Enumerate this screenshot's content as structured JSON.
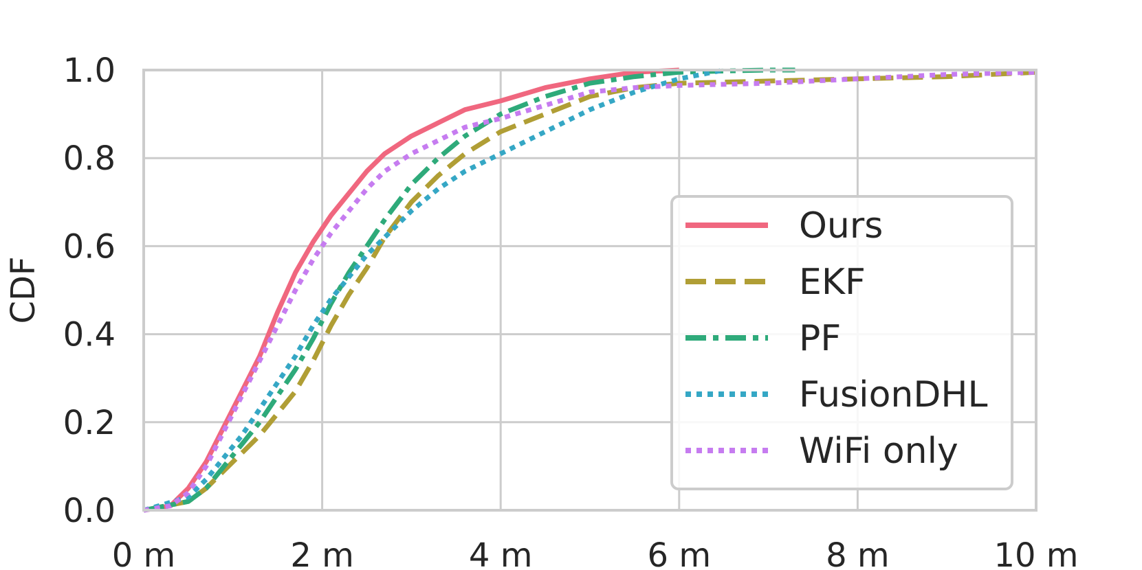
{
  "chart_data": {
    "type": "line",
    "title": "",
    "xlabel": "",
    "ylabel": "CDF",
    "xlim": [
      0,
      10
    ],
    "ylim": [
      0,
      1
    ],
    "x_ticks": [
      0,
      2,
      4,
      6,
      8,
      10
    ],
    "x_tick_labels": [
      "0 m",
      "2 m",
      "4 m",
      "6 m",
      "8 m",
      "10 m"
    ],
    "y_ticks": [
      0,
      0.2,
      0.4,
      0.6,
      0.8,
      1.0
    ],
    "y_tick_labels": [
      "0.0",
      "0.2",
      "0.4",
      "0.6",
      "0.8",
      "1.0"
    ],
    "grid": true,
    "legend_position": "center-right",
    "series": [
      {
        "name": "Ours",
        "color": "#f0677f",
        "dash": "solid",
        "x": [
          0,
          0.3,
          0.5,
          0.7,
          0.9,
          1.1,
          1.3,
          1.5,
          1.7,
          1.9,
          2.1,
          2.3,
          2.5,
          2.7,
          3.0,
          3.3,
          3.6,
          4.0,
          4.5,
          5.0,
          5.5,
          6.0
        ],
        "y": [
          0,
          0.01,
          0.05,
          0.11,
          0.19,
          0.27,
          0.35,
          0.45,
          0.54,
          0.61,
          0.67,
          0.72,
          0.77,
          0.81,
          0.85,
          0.88,
          0.91,
          0.93,
          0.96,
          0.98,
          0.995,
          1.0
        ]
      },
      {
        "name": "EKF",
        "color": "#b09e35",
        "dash": "dashed",
        "x": [
          0,
          0.5,
          0.7,
          0.9,
          1.1,
          1.3,
          1.5,
          1.7,
          1.9,
          2.1,
          2.3,
          2.5,
          2.7,
          3.0,
          3.3,
          3.6,
          4.0,
          4.5,
          5.0,
          5.5,
          6.0,
          7.0,
          8.0,
          9.0,
          10.0
        ],
        "y": [
          0,
          0.02,
          0.05,
          0.09,
          0.13,
          0.17,
          0.22,
          0.27,
          0.34,
          0.42,
          0.49,
          0.55,
          0.62,
          0.7,
          0.76,
          0.81,
          0.86,
          0.9,
          0.94,
          0.96,
          0.97,
          0.975,
          0.98,
          0.985,
          0.995
        ]
      },
      {
        "name": "PF",
        "color": "#2eaa7a",
        "dash": "dashdot",
        "x": [
          0,
          0.5,
          0.7,
          0.9,
          1.1,
          1.3,
          1.5,
          1.7,
          1.9,
          2.1,
          2.3,
          2.5,
          2.7,
          3.0,
          3.3,
          3.6,
          4.0,
          4.5,
          5.0,
          5.5,
          6.0,
          6.5,
          7.0,
          7.3
        ],
        "y": [
          0,
          0.02,
          0.05,
          0.1,
          0.15,
          0.2,
          0.26,
          0.32,
          0.39,
          0.47,
          0.54,
          0.6,
          0.66,
          0.74,
          0.8,
          0.85,
          0.9,
          0.94,
          0.97,
          0.985,
          0.995,
          0.998,
          1.0,
          1.0
        ]
      },
      {
        "name": "FusionDHL",
        "color": "#35a7c5",
        "dash": "dotted",
        "x": [
          0,
          0.5,
          0.7,
          0.9,
          1.1,
          1.3,
          1.5,
          1.7,
          1.9,
          2.1,
          2.3,
          2.5,
          2.7,
          3.0,
          3.3,
          3.6,
          4.0,
          4.5,
          5.0,
          5.5,
          6.0,
          6.5
        ],
        "y": [
          0,
          0.03,
          0.07,
          0.12,
          0.17,
          0.23,
          0.29,
          0.35,
          0.42,
          0.48,
          0.53,
          0.58,
          0.62,
          0.68,
          0.73,
          0.77,
          0.81,
          0.86,
          0.91,
          0.95,
          0.98,
          1.0
        ]
      },
      {
        "name": "WiFi only",
        "color": "#c67cf0",
        "dash": "dotted",
        "x": [
          0,
          0.3,
          0.5,
          0.7,
          0.9,
          1.1,
          1.3,
          1.5,
          1.7,
          1.9,
          2.1,
          2.3,
          2.5,
          2.7,
          3.0,
          3.3,
          3.6,
          4.0,
          4.5,
          5.0,
          5.5,
          6.0,
          7.0,
          8.0,
          9.0,
          10.0
        ],
        "y": [
          0,
          0.01,
          0.04,
          0.1,
          0.18,
          0.26,
          0.34,
          0.42,
          0.5,
          0.57,
          0.63,
          0.68,
          0.73,
          0.77,
          0.81,
          0.84,
          0.87,
          0.89,
          0.92,
          0.95,
          0.96,
          0.965,
          0.97,
          0.98,
          0.99,
          0.995
        ]
      }
    ]
  }
}
